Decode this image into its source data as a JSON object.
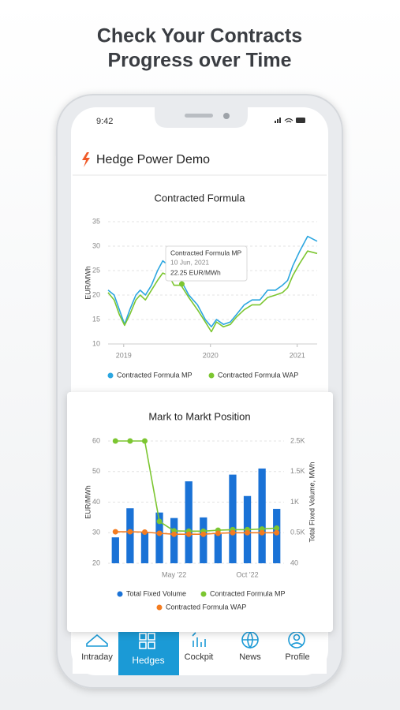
{
  "headline": [
    "Check Your Contracts",
    "Progress over Time"
  ],
  "status": {
    "time": "9:42"
  },
  "app": {
    "title": "Hedge Power Demo"
  },
  "nav": [
    "Intraday",
    "Hedges",
    "Cockpit",
    "News",
    "Profile"
  ],
  "chart_data": [
    {
      "type": "line",
      "title": "Contracted Formula",
      "y_label": "EUR/MWh",
      "x": [
        2018.82,
        2018.89,
        2018.95,
        2019.01,
        2019.07,
        2019.14,
        2019.19,
        2019.25,
        2019.32,
        2019.39,
        2019.45,
        2019.52,
        2019.58,
        2019.66,
        2019.75,
        2019.85,
        2019.94,
        2020.01,
        2020.07,
        2020.15,
        2020.23,
        2020.3,
        2020.39,
        2020.48,
        2020.57,
        2020.66,
        2020.75,
        2020.83,
        2020.89,
        2020.95,
        2021.03,
        2021.12,
        2021.23
      ],
      "xlim": [
        2018.82,
        2021.23
      ],
      "xticks": [
        2019,
        2020,
        2021
      ],
      "ylim": [
        10,
        35
      ],
      "yticks": [
        10,
        15,
        20,
        25,
        30,
        35
      ],
      "grid": true,
      "series": [
        {
          "name": "Contracted Formula MP",
          "color": "#2ba6e0",
          "values": [
            21,
            20,
            17,
            14,
            17,
            20,
            21,
            20,
            22,
            25,
            27,
            26,
            24,
            23,
            20,
            18,
            15,
            13.5,
            15,
            14,
            14.5,
            16,
            18,
            19,
            19,
            21,
            21,
            22,
            23,
            26,
            29,
            32,
            31
          ]
        },
        {
          "name": "Contracted Formula WAP",
          "color": "#7cc631",
          "values": [
            20.5,
            19,
            16,
            13.8,
            16,
            19,
            20,
            19,
            21,
            23,
            24.5,
            24,
            22,
            22,
            19.5,
            17,
            14.5,
            12.5,
            14.5,
            13.5,
            14,
            15.5,
            17,
            18,
            18,
            19.5,
            20,
            20.5,
            21.5,
            24,
            26.5,
            29,
            28.5
          ]
        }
      ],
      "tooltip": {
        "title": "Contracted Formula MP",
        "date": "10 Jun, 2021",
        "x": 2019.67,
        "value": 22.25,
        "value_label": "22.25 EUR/MWh"
      }
    },
    {
      "type": "bar",
      "title": "Mark to Markt Position",
      "y_label": "EUR/MWh",
      "y2_label": "Total Fixed Volume, MWh",
      "categories": [
        null,
        null,
        null,
        null,
        "May '22",
        null,
        null,
        null,
        null,
        "Oct '22",
        null,
        null
      ],
      "ylim": [
        20,
        60
      ],
      "yticks": [
        20,
        30,
        40,
        50,
        60
      ],
      "y2lim": [
        40,
        2500
      ],
      "y2ticks": [
        40,
        {
          "value": 500,
          "label": "0.5K"
        },
        {
          "value": 1000,
          "label": "1K"
        },
        {
          "value": 1500,
          "label": "1.5K"
        },
        {
          "value": 2500,
          "label": "2.5K"
        }
      ],
      "grid": true,
      "series": [
        {
          "name": "Total Fixed Volume",
          "type": "bar",
          "axis": "y2",
          "color": "#1a72d6",
          "values": [
            430,
            900,
            510,
            830,
            740,
            1340,
            750,
            480,
            1450,
            1100,
            1600,
            890
          ]
        },
        {
          "name": "Contracted Formula MP",
          "type": "line",
          "color": "#7cc631",
          "values": [
            60,
            60,
            60,
            33.7,
            30.6,
            30.5,
            30.5,
            30.8,
            31,
            31,
            31.2,
            31.5
          ]
        },
        {
          "name": "Contracted Formula WAP",
          "type": "line",
          "color": "#f47c20",
          "values": [
            30.3,
            30.3,
            30.2,
            29.8,
            29.5,
            29.5,
            29.5,
            29.8,
            30,
            30,
            30,
            30
          ]
        }
      ]
    }
  ]
}
